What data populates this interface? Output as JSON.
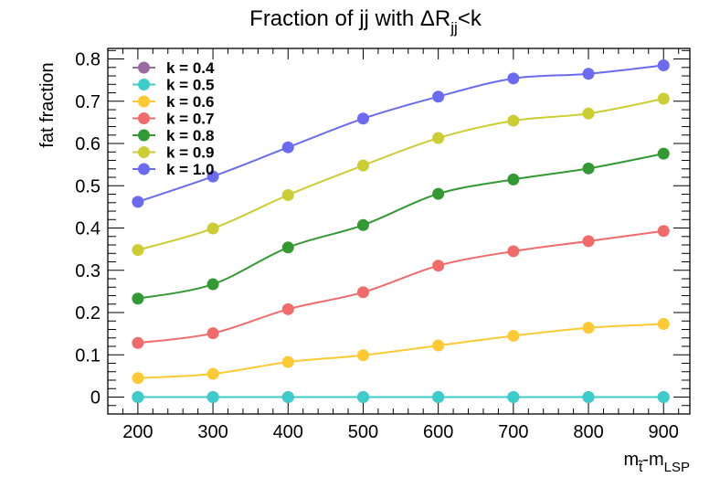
{
  "chart_data": {
    "type": "line",
    "title": "Fraction of jj with ΔR",
    "title_sub": "jj",
    "title_tail": "<k",
    "xlabel_main": "m",
    "xlabel_sub1": "t̃",
    "xlabel_mid": "-m",
    "xlabel_sub2": "LSP",
    "ylabel": "fat fraction",
    "x": [
      200,
      300,
      400,
      500,
      600,
      700,
      800,
      900
    ],
    "xticks": [
      "200",
      "300",
      "400",
      "500",
      "600",
      "700",
      "800",
      "900"
    ],
    "yticks": [
      "0",
      "0.1",
      "0.2",
      "0.3",
      "0.4",
      "0.5",
      "0.6",
      "0.7",
      "0.8"
    ],
    "xlim": [
      160,
      935
    ],
    "ylim": [
      -0.04,
      0.825
    ],
    "grid": false,
    "legend_position": "top-left",
    "series": [
      {
        "name": "k = 0.4",
        "color": "#9a6ba3",
        "values": [
          0,
          0,
          0,
          0,
          0,
          0,
          0,
          0
        ]
      },
      {
        "name": "k = 0.5",
        "color": "#3ccccc",
        "values": [
          0,
          0,
          0,
          0,
          0,
          0,
          0,
          0
        ]
      },
      {
        "name": "k = 0.6",
        "color": "#ffc933",
        "values": [
          0.045,
          0.055,
          0.083,
          0.099,
          0.122,
          0.145,
          0.164,
          0.173
        ]
      },
      {
        "name": "k = 0.7",
        "color": "#f26b6b",
        "values": [
          0.128,
          0.151,
          0.208,
          0.248,
          0.311,
          0.345,
          0.369,
          0.393
        ]
      },
      {
        "name": "k = 0.8",
        "color": "#339933",
        "values": [
          0.233,
          0.267,
          0.354,
          0.407,
          0.481,
          0.515,
          0.541,
          0.576
        ]
      },
      {
        "name": "k = 0.9",
        "color": "#cccc33",
        "values": [
          0.348,
          0.399,
          0.478,
          0.548,
          0.613,
          0.654,
          0.671,
          0.706
        ]
      },
      {
        "name": "k = 1.0",
        "color": "#6b6bf2",
        "values": [
          0.462,
          0.522,
          0.591,
          0.659,
          0.711,
          0.754,
          0.765,
          0.785
        ]
      }
    ]
  }
}
